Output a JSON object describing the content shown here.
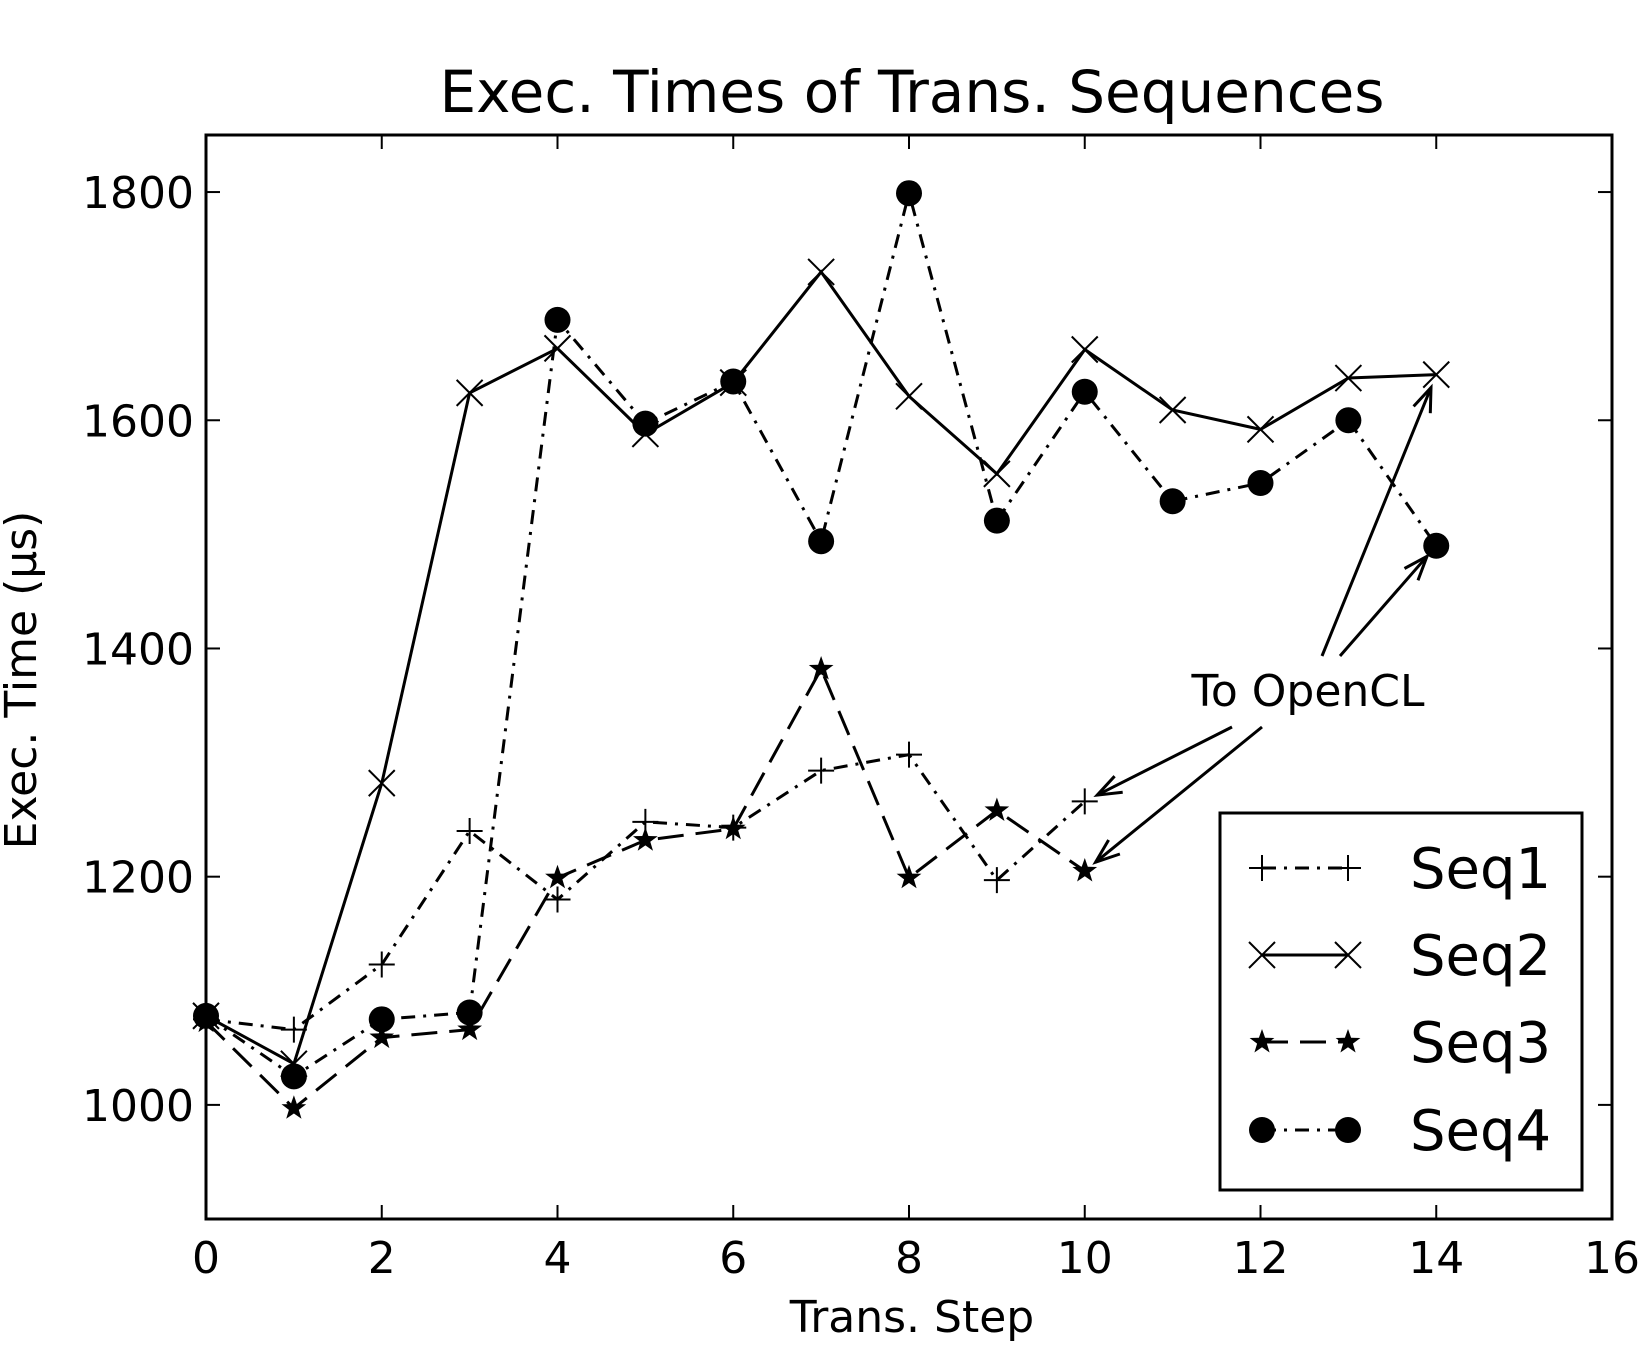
{
  "chart_data": {
    "type": "line",
    "title": "Exec. Times of Trans. Sequences",
    "xlabel": "Trans. Step",
    "ylabel": "Exec. Time (μs)",
    "xlim": [
      0,
      16
    ],
    "ylim": [
      900,
      1850
    ],
    "xticks": [
      0,
      2,
      4,
      6,
      8,
      10,
      12,
      14,
      16
    ],
    "yticks": [
      1000,
      1200,
      1400,
      1600,
      1800
    ],
    "grid": false,
    "legend_position": "lower-right",
    "annotation": {
      "text": "To OpenCL",
      "targets": [
        {
          "x": 14,
          "y": 1640
        },
        {
          "x": 14,
          "y": 1490
        },
        {
          "x": 10,
          "y": 1266
        },
        {
          "x": 10,
          "y": 1205
        }
      ]
    },
    "series": [
      {
        "name": "Seq1",
        "marker": "plus",
        "linestyle": "dashdot",
        "x": [
          0,
          1,
          2,
          3,
          4,
          5,
          6,
          7,
          8,
          9,
          10
        ],
        "y": [
          1075,
          1066,
          1123,
          1240,
          1180,
          1248,
          1243,
          1293,
          1307,
          1197,
          1266
        ]
      },
      {
        "name": "Seq2",
        "marker": "x",
        "linestyle": "solid",
        "x": [
          0,
          1,
          2,
          3,
          4,
          5,
          6,
          7,
          8,
          9,
          10,
          11,
          12,
          13,
          14
        ],
        "y": [
          1078,
          1036,
          1282,
          1624,
          1663,
          1588,
          1633,
          1730,
          1621,
          1553,
          1662,
          1609,
          1592,
          1637,
          1640
        ]
      },
      {
        "name": "Seq3",
        "marker": "star",
        "linestyle": "dashed",
        "x": [
          0,
          1,
          2,
          3,
          4,
          5,
          6,
          7,
          8,
          9,
          10
        ],
        "y": [
          1073,
          997,
          1059,
          1066,
          1199,
          1232,
          1242,
          1382,
          1199,
          1258,
          1205
        ]
      },
      {
        "name": "Seq4",
        "marker": "circle",
        "linestyle": "dashdot",
        "x": [
          0,
          1,
          2,
          3,
          4,
          5,
          6,
          7,
          8,
          9,
          10,
          11,
          12,
          13,
          14
        ],
        "y": [
          1078,
          1025,
          1075,
          1081,
          1688,
          1597,
          1634,
          1494,
          1799,
          1512,
          1625,
          1529,
          1545,
          1600,
          1490
        ]
      }
    ]
  }
}
